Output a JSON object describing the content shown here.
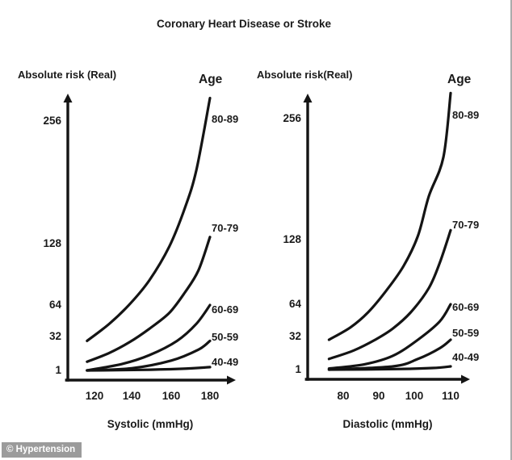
{
  "page": {
    "title": "Coronary Heart Disease or Stroke",
    "watermark": "© Hypertension"
  },
  "chart_data": [
    {
      "type": "line",
      "title": "Coronary Heart Disease or Stroke",
      "ylabel": "Absolute risk (Real)",
      "xlabel": "Systolic (mmHg)",
      "legend_title": "Age",
      "x_ticks": [
        120,
        140,
        160,
        180
      ],
      "y_ticks": [
        1,
        32,
        64,
        128,
        256
      ],
      "x_range": [
        116,
        180
      ],
      "grid": false,
      "legend_position": "right-of-curves",
      "series": [
        {
          "name": "80-89",
          "points": [
            [
              116,
              28
            ],
            [
              128,
              45
            ],
            [
              139,
              65
            ],
            [
              149,
              90
            ],
            [
              159,
              125
            ],
            [
              167,
              165
            ],
            [
              173,
              205
            ],
            [
              180,
              280
            ]
          ]
        },
        {
          "name": "70-79",
          "points": [
            [
              116,
              9
            ],
            [
              128,
              17
            ],
            [
              139,
              27
            ],
            [
              149,
              40
            ],
            [
              159,
              56
            ],
            [
              167,
              77
            ],
            [
              174,
              100
            ],
            [
              180,
              135
            ]
          ]
        },
        {
          "name": "60-69",
          "points": [
            [
              116,
              1
            ],
            [
              135,
              7
            ],
            [
              149,
              15
            ],
            [
              163,
              28
            ],
            [
              173,
              45
            ],
            [
              180,
              64
            ]
          ]
        },
        {
          "name": "50-59",
          "points": [
            [
              116,
              1
            ],
            [
              140,
              3
            ],
            [
              160,
              10
            ],
            [
              174,
              20
            ],
            [
              180,
              28
            ]
          ]
        },
        {
          "name": "40-49",
          "points": [
            [
              116,
              1
            ],
            [
              145,
              1.5
            ],
            [
              165,
              2.5
            ],
            [
              180,
              4
            ]
          ]
        }
      ]
    },
    {
      "type": "line",
      "title": "Coronary Heart Disease or Stroke",
      "ylabel": "Absolute risk(Real)",
      "xlabel": "Diastolic (mmHg)",
      "legend_title": "Age",
      "x_ticks": [
        80,
        90,
        100,
        110
      ],
      "y_ticks": [
        1,
        32,
        64,
        128,
        256
      ],
      "x_range": [
        76,
        110
      ],
      "grid": false,
      "legend_position": "right-of-curves",
      "series": [
        {
          "name": "80-89",
          "points": [
            [
              76,
              29
            ],
            [
              82,
              41
            ],
            [
              87,
              56
            ],
            [
              92,
              77
            ],
            [
              97,
              102
            ],
            [
              101,
              132
            ],
            [
              104,
              174
            ],
            [
              108,
              215
            ],
            [
              110,
              283
            ]
          ]
        },
        {
          "name": "70-79",
          "points": [
            [
              76,
              11
            ],
            [
              83,
              19
            ],
            [
              89,
              29
            ],
            [
              94,
              40
            ],
            [
              99,
              56
            ],
            [
              104,
              80
            ],
            [
              107,
              105
            ],
            [
              110,
              138
            ]
          ]
        },
        {
          "name": "60-69",
          "points": [
            [
              76,
              2
            ],
            [
              86,
              6
            ],
            [
              94,
              14
            ],
            [
              101,
              29
            ],
            [
              107,
              47
            ],
            [
              110,
              64
            ]
          ]
        },
        {
          "name": "50-59",
          "points": [
            [
              76,
              1
            ],
            [
              94,
              4
            ],
            [
              101,
              11
            ],
            [
              107,
              21
            ],
            [
              110,
              29
            ]
          ]
        },
        {
          "name": "40-49",
          "points": [
            [
              76,
              1
            ],
            [
              95,
              1.5
            ],
            [
              105,
              2.5
            ],
            [
              110,
              4
            ]
          ]
        }
      ]
    }
  ],
  "style": {
    "curve_color": "#141414",
    "axis_color": "#141414",
    "watermark_bg": "#9b9b9b",
    "watermark_fg": "#ffffff"
  }
}
